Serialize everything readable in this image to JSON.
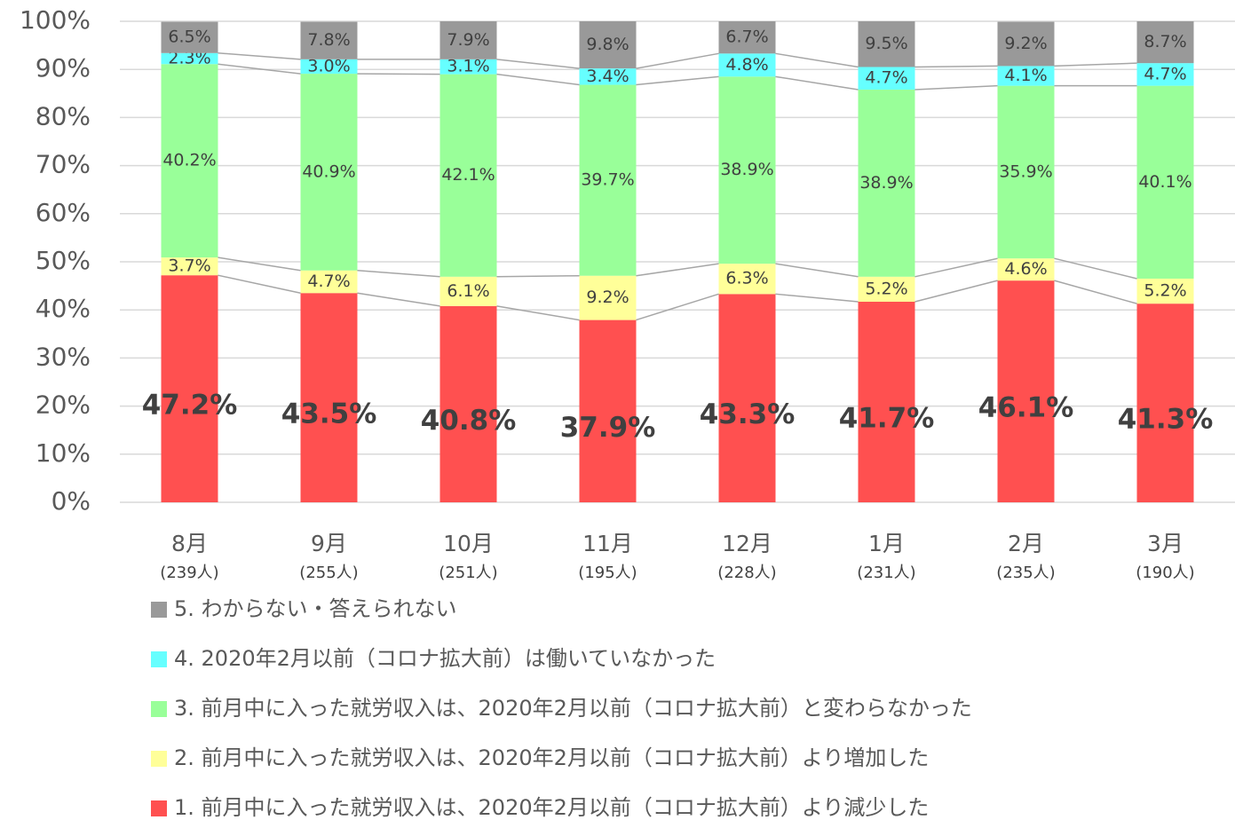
{
  "chart_data": {
    "type": "stacked_bar",
    "categories": [
      "8月",
      "9月",
      "10月",
      "11月",
      "12月",
      "1月",
      "2月",
      "3月"
    ],
    "category_sublabels": [
      "(239人)",
      "(255人)",
      "(251人)",
      "(195人)",
      "(228人)",
      "(231人)",
      "(235人)",
      "(190人)"
    ],
    "series": [
      {
        "name": "1. 前月中に入った就労収入は、2020年2月以前（コロナ拡大前）より減少した",
        "color": "#ff5050",
        "values": [
          47.2,
          43.5,
          40.8,
          37.9,
          43.3,
          41.7,
          46.1,
          41.3
        ],
        "value_labels": [
          "47.2%",
          "43.5%",
          "40.8%",
          "37.9%",
          "43.3%",
          "41.7%",
          "46.1%",
          "41.3%"
        ]
      },
      {
        "name": "2. 前月中に入った就労収入は、2020年2月以前（コロナ拡大前）より増加した",
        "color": "#ffff99",
        "values": [
          3.7,
          4.7,
          6.1,
          9.2,
          6.3,
          5.2,
          4.6,
          5.2
        ],
        "value_labels": [
          "3.7%",
          "4.7%",
          "6.1%",
          "9.2%",
          "6.3%",
          "5.2%",
          "4.6%",
          "5.2%"
        ]
      },
      {
        "name": "3. 前月中に入った就労収入は、2020年2月以前（コロナ拡大前）と変わらなかった",
        "color": "#99ff99",
        "values": [
          40.2,
          40.9,
          42.1,
          39.7,
          38.9,
          38.9,
          35.9,
          40.1
        ],
        "value_labels": [
          "40.2%",
          "40.9%",
          "42.1%",
          "39.7%",
          "38.9%",
          "38.9%",
          "35.9%",
          "40.1%"
        ]
      },
      {
        "name": "4. 2020年2月以前（コロナ拡大前）は働いていなかった",
        "color": "#66ffff",
        "values": [
          2.3,
          3.0,
          3.1,
          3.4,
          4.8,
          4.7,
          4.1,
          4.7
        ],
        "value_labels": [
          "2.3%",
          "3.0%",
          "3.1%",
          "3.4%",
          "4.8%",
          "4.7%",
          "4.1%",
          "4.7%"
        ]
      },
      {
        "name": "5. わからない・答えられない",
        "color": "#999999",
        "values": [
          6.5,
          7.8,
          7.9,
          9.8,
          6.7,
          9.5,
          9.2,
          8.7
        ],
        "value_labels": [
          "6.5%",
          "7.8%",
          "7.9%",
          "9.8%",
          "6.7%",
          "9.5%",
          "9.2%",
          "8.7%"
        ]
      }
    ],
    "ylim": [
      0,
      100
    ],
    "yticks": [
      {
        "value": 0,
        "label": "0%"
      },
      {
        "value": 10,
        "label": "10%"
      },
      {
        "value": 20,
        "label": "20%"
      },
      {
        "value": 30,
        "label": "30%"
      },
      {
        "value": 40,
        "label": "40%"
      },
      {
        "value": 50,
        "label": "50%"
      },
      {
        "value": 60,
        "label": "60%"
      },
      {
        "value": 70,
        "label": "70%"
      },
      {
        "value": 80,
        "label": "80%"
      },
      {
        "value": 90,
        "label": "90%"
      },
      {
        "value": 100,
        "label": "100%"
      }
    ],
    "grid": true,
    "legend": "bottom"
  }
}
